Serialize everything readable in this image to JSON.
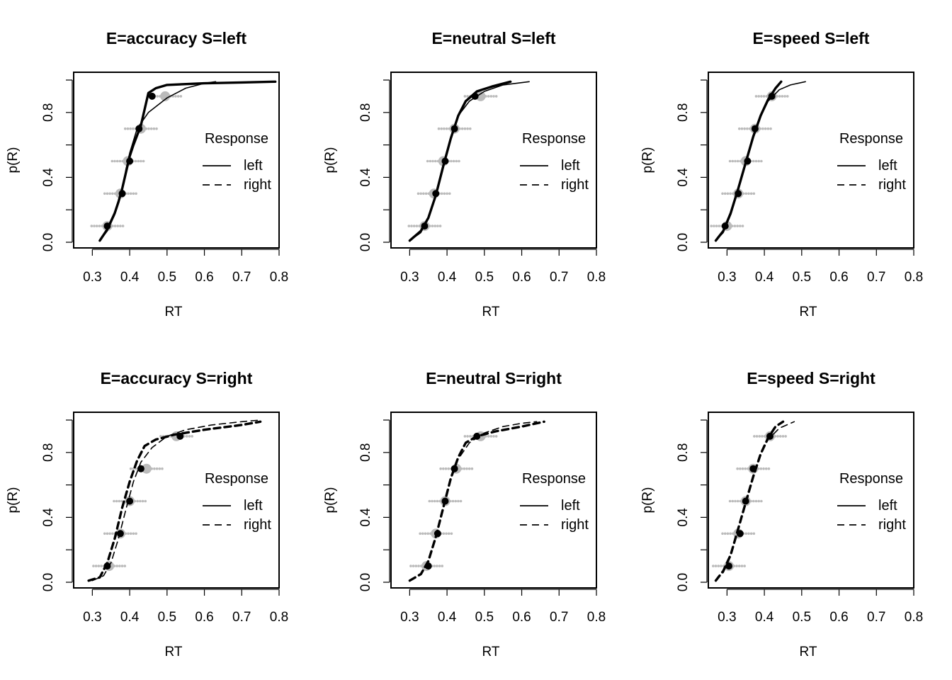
{
  "axis_labels": {
    "x": "RT",
    "y": "p(R)"
  },
  "x_ticks": [
    0.3,
    0.4,
    0.5,
    0.6,
    0.7,
    0.8
  ],
  "y_ticks": [
    0.0,
    0.4,
    0.8
  ],
  "y_tick_labels": [
    "0.0",
    "0.4",
    "0.8"
  ],
  "x_tick_labels": [
    "0.3",
    "0.4",
    "0.5",
    "0.6",
    "0.7",
    "0.8"
  ],
  "legend": {
    "title": "Response",
    "items": [
      "left",
      "right"
    ]
  },
  "colors": {
    "observed": "#000000",
    "predicted_points": "#bbbbbb",
    "background": "#ffffff"
  },
  "chart_data": [
    {
      "type": "line",
      "title": "E=accuracy S=left",
      "xlim": [
        0.25,
        0.8
      ],
      "ylim": [
        0,
        1
      ],
      "xlabel": "RT",
      "ylabel": "p(R)",
      "legend_position": "right",
      "series": [
        {
          "name": "left",
          "style": "solid",
          "lines": [
            {
              "weight": "thin",
              "x": [
                0.32,
                0.34,
                0.36,
                0.38,
                0.39,
                0.4,
                0.42,
                0.45,
                0.5,
                0.55,
                0.6,
                0.63
              ],
              "y": [
                0.01,
                0.07,
                0.17,
                0.32,
                0.45,
                0.55,
                0.7,
                0.8,
                0.89,
                0.95,
                0.98,
                0.99
              ]
            },
            {
              "weight": "thick",
              "x": [
                0.32,
                0.34,
                0.36,
                0.37,
                0.38,
                0.39,
                0.4,
                0.41,
                0.43,
                0.44,
                0.45,
                0.47,
                0.5,
                0.6,
                0.7,
                0.79
              ],
              "y": [
                0.01,
                0.08,
                0.18,
                0.25,
                0.33,
                0.43,
                0.53,
                0.6,
                0.72,
                0.82,
                0.92,
                0.95,
                0.97,
                0.98,
                0.985,
                0.99
              ]
            }
          ],
          "quantiles_observed": [
            [
              0.34,
              0.1
            ],
            [
              0.38,
              0.3
            ],
            [
              0.4,
              0.5
            ],
            [
              0.425,
              0.7
            ],
            [
              0.46,
              0.9
            ]
          ],
          "quantiles_predicted": [
            [
              0.34,
              0.1
            ],
            [
              0.375,
              0.3
            ],
            [
              0.395,
              0.5
            ],
            [
              0.43,
              0.7
            ],
            [
              0.495,
              0.9
            ]
          ]
        }
      ]
    },
    {
      "type": "line",
      "title": "E=neutral S=left",
      "xlim": [
        0.25,
        0.8
      ],
      "ylim": [
        0,
        1
      ],
      "xlabel": "RT",
      "ylabel": "p(R)",
      "legend_position": "right",
      "series": [
        {
          "name": "left",
          "style": "solid",
          "lines": [
            {
              "weight": "thin",
              "x": [
                0.3,
                0.33,
                0.35,
                0.37,
                0.39,
                0.41,
                0.43,
                0.46,
                0.5,
                0.55,
                0.62
              ],
              "y": [
                0.01,
                0.06,
                0.15,
                0.3,
                0.48,
                0.65,
                0.78,
                0.87,
                0.93,
                0.97,
                0.99
              ]
            },
            {
              "weight": "thick",
              "x": [
                0.3,
                0.33,
                0.35,
                0.37,
                0.39,
                0.41,
                0.43,
                0.45,
                0.48,
                0.52,
                0.57
              ],
              "y": [
                0.01,
                0.07,
                0.15,
                0.29,
                0.47,
                0.64,
                0.78,
                0.87,
                0.93,
                0.96,
                0.99
              ]
            }
          ],
          "quantiles_observed": [
            [
              0.34,
              0.1
            ],
            [
              0.37,
              0.3
            ],
            [
              0.395,
              0.5
            ],
            [
              0.42,
              0.7
            ],
            [
              0.475,
              0.9
            ]
          ],
          "quantiles_predicted": [
            [
              0.34,
              0.1
            ],
            [
              0.365,
              0.3
            ],
            [
              0.39,
              0.5
            ],
            [
              0.42,
              0.7
            ],
            [
              0.49,
              0.9
            ]
          ]
        }
      ]
    },
    {
      "type": "line",
      "title": "E=speed S=left",
      "xlim": [
        0.25,
        0.8
      ],
      "ylim": [
        0,
        1
      ],
      "xlabel": "RT",
      "ylabel": "p(R)",
      "legend_position": "right",
      "series": [
        {
          "name": "left",
          "style": "solid",
          "lines": [
            {
              "weight": "thin",
              "x": [
                0.27,
                0.29,
                0.31,
                0.33,
                0.35,
                0.37,
                0.39,
                0.41,
                0.44,
                0.47,
                0.51
              ],
              "y": [
                0.01,
                0.06,
                0.17,
                0.33,
                0.5,
                0.66,
                0.78,
                0.87,
                0.94,
                0.97,
                0.99
              ]
            },
            {
              "weight": "thick",
              "x": [
                0.27,
                0.29,
                0.31,
                0.33,
                0.35,
                0.37,
                0.39,
                0.41,
                0.43,
                0.445
              ],
              "y": [
                0.01,
                0.07,
                0.18,
                0.33,
                0.49,
                0.65,
                0.78,
                0.88,
                0.95,
                0.99
              ]
            }
          ],
          "quantiles_observed": [
            [
              0.295,
              0.1
            ],
            [
              0.33,
              0.3
            ],
            [
              0.355,
              0.5
            ],
            [
              0.375,
              0.7
            ],
            [
              0.42,
              0.9
            ]
          ],
          "quantiles_predicted": [
            [
              0.3,
              0.1
            ],
            [
              0.33,
              0.3
            ],
            [
              0.35,
              0.5
            ],
            [
              0.375,
              0.7
            ],
            [
              0.42,
              0.9
            ]
          ]
        }
      ]
    },
    {
      "type": "line",
      "title": "E=accuracy S=right",
      "xlim": [
        0.25,
        0.8
      ],
      "ylim": [
        0,
        1
      ],
      "xlabel": "RT",
      "ylabel": "p(R)",
      "legend_position": "right",
      "series": [
        {
          "name": "right",
          "style": "dashed",
          "lines": [
            {
              "weight": "thin",
              "x": [
                0.3,
                0.33,
                0.35,
                0.37,
                0.39,
                0.41,
                0.43,
                0.46,
                0.5,
                0.55,
                0.62,
                0.7,
                0.75
              ],
              "y": [
                0.01,
                0.04,
                0.12,
                0.27,
                0.45,
                0.62,
                0.74,
                0.83,
                0.9,
                0.94,
                0.97,
                0.99,
                1.0
              ]
            },
            {
              "weight": "thick",
              "x": [
                0.29,
                0.32,
                0.34,
                0.36,
                0.38,
                0.4,
                0.42,
                0.44,
                0.47,
                0.52,
                0.6,
                0.7,
                0.75
              ],
              "y": [
                0.01,
                0.03,
                0.12,
                0.27,
                0.46,
                0.62,
                0.75,
                0.84,
                0.88,
                0.91,
                0.94,
                0.97,
                0.99
              ]
            }
          ],
          "quantiles_observed": [
            [
              0.34,
              0.1
            ],
            [
              0.375,
              0.3
            ],
            [
              0.4,
              0.5
            ],
            [
              0.43,
              0.7
            ],
            [
              0.535,
              0.9
            ]
          ],
          "quantiles_predicted": [
            [
              0.345,
              0.1
            ],
            [
              0.375,
              0.3
            ],
            [
              0.4,
              0.5
            ],
            [
              0.445,
              0.7
            ],
            [
              0.525,
              0.9
            ]
          ]
        }
      ]
    },
    {
      "type": "line",
      "title": "E=neutral S=right",
      "xlim": [
        0.25,
        0.8
      ],
      "ylim": [
        0,
        1
      ],
      "xlabel": "RT",
      "ylabel": "p(R)",
      "legend_position": "right",
      "series": [
        {
          "name": "right",
          "style": "dashed",
          "lines": [
            {
              "weight": "thin",
              "x": [
                0.3,
                0.33,
                0.35,
                0.37,
                0.39,
                0.41,
                0.43,
                0.46,
                0.5,
                0.55,
                0.6,
                0.64
              ],
              "y": [
                0.01,
                0.05,
                0.13,
                0.28,
                0.46,
                0.63,
                0.76,
                0.86,
                0.92,
                0.96,
                0.98,
                0.99
              ]
            },
            {
              "weight": "thick",
              "x": [
                0.3,
                0.33,
                0.35,
                0.37,
                0.39,
                0.41,
                0.43,
                0.45,
                0.48,
                0.53,
                0.6,
                0.66
              ],
              "y": [
                0.01,
                0.05,
                0.13,
                0.28,
                0.46,
                0.64,
                0.77,
                0.86,
                0.9,
                0.93,
                0.96,
                0.99
              ]
            }
          ],
          "quantiles_observed": [
            [
              0.35,
              0.1
            ],
            [
              0.375,
              0.3
            ],
            [
              0.395,
              0.5
            ],
            [
              0.42,
              0.7
            ],
            [
              0.48,
              0.9
            ]
          ],
          "quantiles_predicted": [
            [
              0.345,
              0.1
            ],
            [
              0.37,
              0.3
            ],
            [
              0.395,
              0.5
            ],
            [
              0.425,
              0.7
            ],
            [
              0.49,
              0.9
            ]
          ]
        }
      ]
    },
    {
      "type": "line",
      "title": "E=speed S=right",
      "xlim": [
        0.25,
        0.8
      ],
      "ylim": [
        0,
        1
      ],
      "xlabel": "RT",
      "ylabel": "p(R)",
      "legend_position": "right",
      "series": [
        {
          "name": "right",
          "style": "dashed",
          "lines": [
            {
              "weight": "thin",
              "x": [
                0.27,
                0.29,
                0.31,
                0.33,
                0.35,
                0.37,
                0.39,
                0.41,
                0.44,
                0.47,
                0.48
              ],
              "y": [
                0.01,
                0.06,
                0.16,
                0.32,
                0.5,
                0.66,
                0.79,
                0.88,
                0.95,
                0.98,
                0.99
              ]
            },
            {
              "weight": "thick",
              "x": [
                0.27,
                0.29,
                0.31,
                0.33,
                0.35,
                0.37,
                0.39,
                0.41,
                0.43,
                0.45
              ],
              "y": [
                0.01,
                0.07,
                0.17,
                0.33,
                0.49,
                0.65,
                0.79,
                0.89,
                0.96,
                0.99
              ]
            }
          ],
          "quantiles_observed": [
            [
              0.305,
              0.1
            ],
            [
              0.335,
              0.3
            ],
            [
              0.35,
              0.5
            ],
            [
              0.37,
              0.7
            ],
            [
              0.415,
              0.9
            ]
          ],
          "quantiles_predicted": [
            [
              0.305,
              0.1
            ],
            [
              0.33,
              0.3
            ],
            [
              0.35,
              0.5
            ],
            [
              0.37,
              0.7
            ],
            [
              0.415,
              0.9
            ]
          ]
        }
      ]
    }
  ]
}
